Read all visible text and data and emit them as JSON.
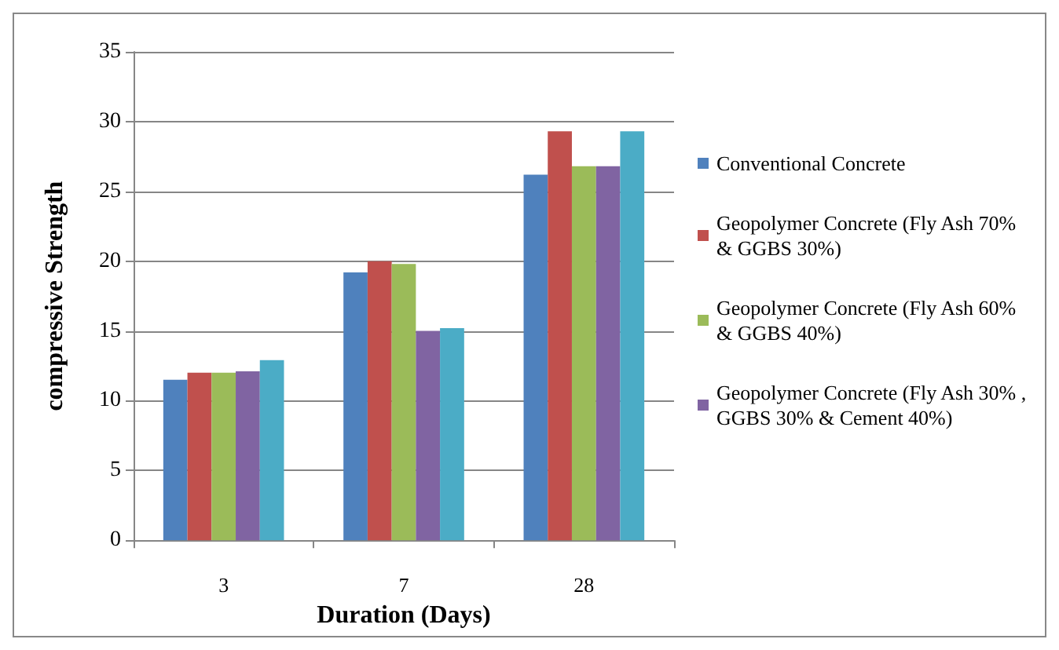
{
  "chart_data": {
    "type": "bar",
    "xlabel": "Duration (Days)",
    "ylabel": "compressive Strength",
    "categories": [
      "3",
      "7",
      "28"
    ],
    "series": [
      {
        "name": "Conventional Concrete",
        "color": "#4f81bd",
        "values": [
          11.5,
          19.2,
          26.2
        ]
      },
      {
        "name": "Geopolymer Concrete (Fly Ash 70% & GGBS 30%)",
        "color": "#c0504d",
        "values": [
          12,
          20,
          29.3
        ]
      },
      {
        "name": "Geopolymer Concrete (Fly Ash 60% & GGBS 40%)",
        "color": "#9bbb59",
        "values": [
          12,
          19.8,
          26.8
        ]
      },
      {
        "name": "Geopolymer Concrete (Fly Ash 30% ,GGBS 30% & Cement 40%)",
        "color": "#8064a2",
        "values": [
          12.1,
          15,
          26.8
        ]
      },
      {
        "color": "#4bacc6",
        "values": [
          12.9,
          15.2,
          29.3
        ]
      }
    ],
    "ylim": [
      0,
      35
    ],
    "yticks": [
      0,
      5,
      10,
      15,
      20,
      25,
      30,
      35
    ],
    "grid": "y",
    "legend": "right"
  }
}
